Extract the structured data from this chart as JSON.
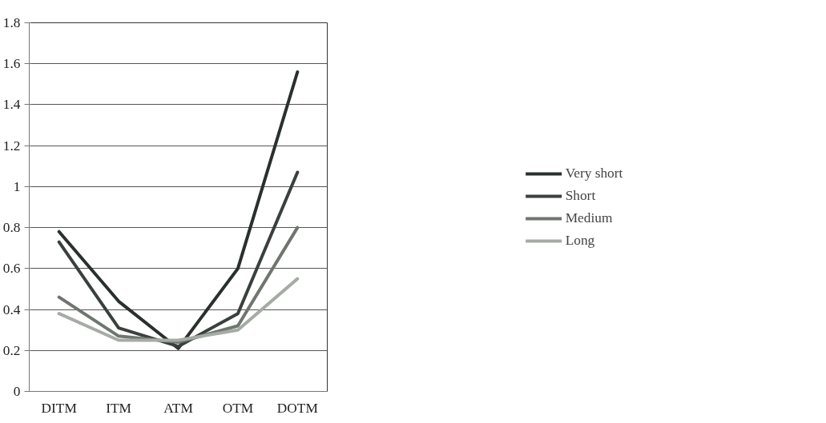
{
  "chart_data": {
    "type": "line",
    "categories": [
      "DITM",
      "ITM",
      "ATM",
      "OTM",
      "DOTM"
    ],
    "series": [
      {
        "name": "Very short",
        "color": "#2a302c",
        "values": [
          0.78,
          0.44,
          0.21,
          0.6,
          1.56
        ]
      },
      {
        "name": "Short",
        "color": "#3a413c",
        "values": [
          0.73,
          0.31,
          0.22,
          0.38,
          1.07
        ]
      },
      {
        "name": "Medium",
        "color": "#6f756f",
        "values": [
          0.46,
          0.27,
          0.24,
          0.32,
          0.8
        ]
      },
      {
        "name": "Long",
        "color": "#a6aba6",
        "values": [
          0.38,
          0.25,
          0.25,
          0.3,
          0.55
        ]
      }
    ],
    "ylim": [
      0,
      1.8
    ],
    "yticks": [
      0,
      0.2,
      0.4,
      0.6,
      0.8,
      1,
      1.2,
      1.4,
      1.6,
      1.8
    ],
    "grid": "y",
    "legend": "right",
    "marker": "none",
    "line_style": "solid"
  }
}
